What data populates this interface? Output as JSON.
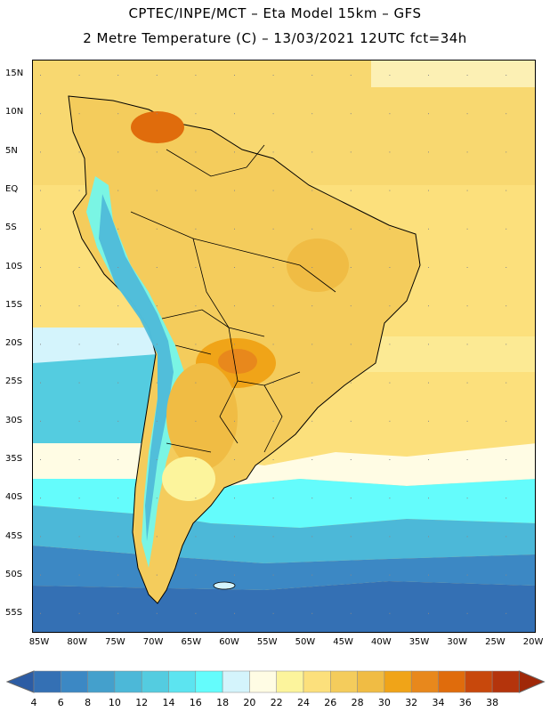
{
  "title": {
    "line1": "CPTEC/INPE/MCT –  Eta Model 15km – GFS",
    "line2": "2 Metre Temperature (C) – 13/03/2021 12UTC fct=34h"
  },
  "lat_labels": [
    "15N",
    "10N",
    "5N",
    "EQ",
    "5S",
    "10S",
    "15S",
    "20S",
    "25S",
    "30S",
    "35S",
    "40S",
    "45S",
    "50S",
    "55S"
  ],
  "lon_labels": [
    "85W",
    "80W",
    "75W",
    "70W",
    "65W",
    "60W",
    "55W",
    "50W",
    "45W",
    "40W",
    "35W",
    "30W",
    "25W",
    "20W"
  ],
  "colorbar": {
    "labels": [
      "4",
      "6",
      "8",
      "10",
      "12",
      "14",
      "16",
      "18",
      "20",
      "22",
      "24",
      "26",
      "28",
      "30",
      "32",
      "34",
      "36",
      "38"
    ],
    "colors": [
      "#3470b4",
      "#3c88c4",
      "#44a0cc",
      "#4cb8d8",
      "#54cce0",
      "#5ce4f0",
      "#64fcfc",
      "#d4f4fc",
      "#fffce4",
      "#fcf49c",
      "#fce07c",
      "#f4cc5c",
      "#f0bc44",
      "#f0a418",
      "#e8881c",
      "#e06c0c",
      "#c8480c",
      "#b4340c"
    ],
    "under_color": "#2c5ca4",
    "over_color": "#a02808"
  }
}
